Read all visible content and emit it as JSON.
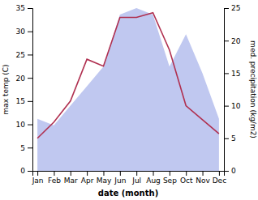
{
  "chart_data": {
    "type": "line",
    "xlabel": "date (month)",
    "ylabel": "max temp (C)",
    "y2label": "med. precipitation (kg/m2)",
    "categories": [
      "Jan",
      "Feb",
      "Mar",
      "Apr",
      "May",
      "Jun",
      "Jul",
      "Aug",
      "Sep",
      "Oct",
      "Nov",
      "Dec"
    ],
    "series": [
      {
        "type": "area",
        "axis": "y2",
        "color": "#c0c8f0",
        "values": [
          8,
          7,
          10,
          13,
          16,
          24,
          25,
          24,
          16,
          21,
          15,
          8
        ]
      },
      {
        "type": "line",
        "color": "#b03050",
        "values": [
          7,
          10.5,
          15,
          24,
          22.5,
          33,
          33,
          34,
          26,
          14,
          11,
          8
        ]
      }
    ],
    "ylim": [
      0,
      35
    ],
    "yticks": [
      0,
      5,
      10,
      15,
      20,
      25,
      30,
      35
    ],
    "y2lim": [
      0,
      25
    ],
    "y2ticks": [
      0,
      5,
      10,
      15,
      20,
      25
    ]
  }
}
